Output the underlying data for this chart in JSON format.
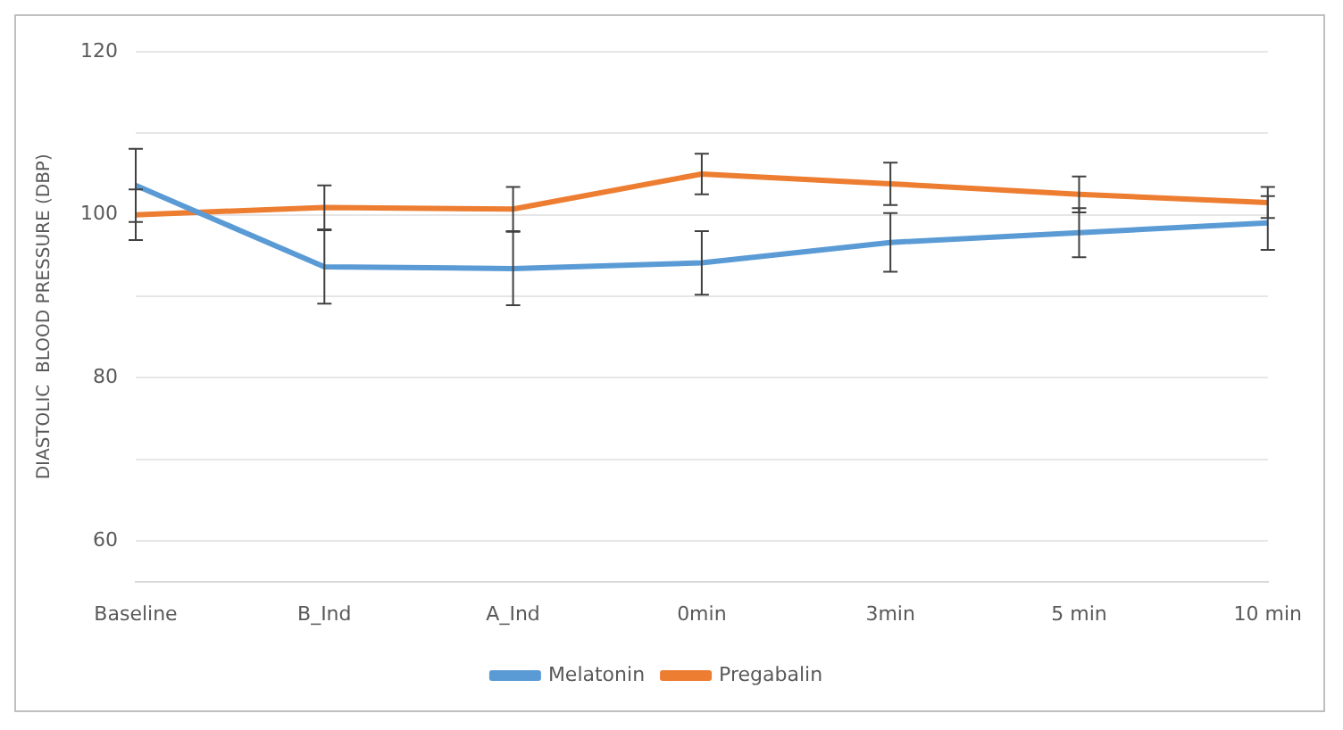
{
  "chart_data": {
    "type": "line",
    "ylabel": "DIASTOLIC  BLOOD PRESSURE (DBP)",
    "categories": [
      "Baseline",
      "B_Ind",
      "A_Ind",
      "0min",
      "3min",
      "5 min",
      "10 min"
    ],
    "series": [
      {
        "name": "Melatonin",
        "color": "#5b9bd5",
        "values": [
          103.6,
          93.6,
          93.4,
          94.1,
          96.6,
          97.8,
          99.0
        ],
        "errors": [
          4.5,
          4.5,
          4.5,
          3.9,
          3.6,
          3.0,
          3.3
        ]
      },
      {
        "name": "Pregabalin",
        "color": "#ed7d31",
        "values": [
          100.0,
          100.9,
          100.7,
          105.0,
          103.8,
          102.5,
          101.5
        ],
        "errors": [
          3.1,
          2.7,
          2.7,
          2.5,
          2.6,
          2.2,
          1.9
        ]
      }
    ],
    "ylim": [
      55,
      120
    ],
    "yticks": [
      {
        "value": 60,
        "label": "60"
      },
      {
        "value": 70,
        "label": null
      },
      {
        "value": 80,
        "label": "80"
      },
      {
        "value": 90,
        "label": null
      },
      {
        "value": 100,
        "label": "100"
      },
      {
        "value": 110,
        "label": null
      },
      {
        "value": 120,
        "label": "120"
      }
    ],
    "grid": "y",
    "legend": "bottom",
    "marker": "none",
    "line_style": "solid"
  }
}
